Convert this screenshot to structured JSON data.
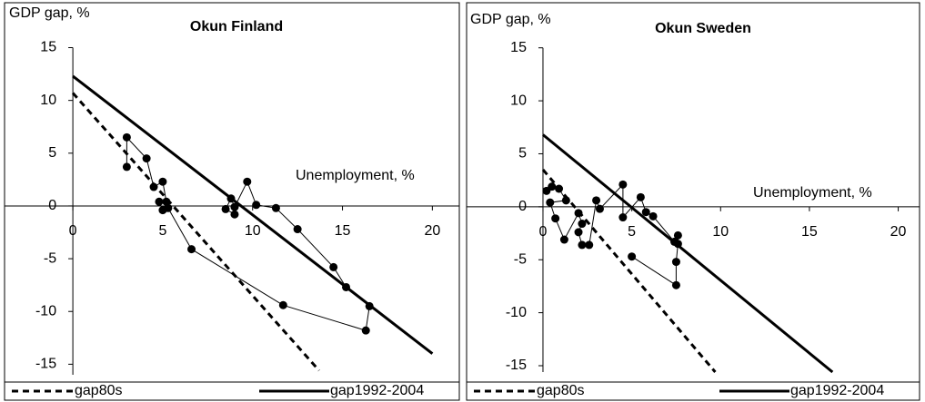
{
  "chart_data": [
    {
      "type": "scatter",
      "title": "Okun Finland",
      "ylabel": "GDP gap, %",
      "xlabel": "Unemployment, %",
      "xlim": [
        -3.8,
        21.5
      ],
      "ylim": [
        -16,
        19
      ],
      "xticks": [
        0,
        5,
        10,
        15,
        20
      ],
      "yticks": [
        -15,
        -10,
        -5,
        0,
        5,
        10,
        15
      ],
      "series": [
        {
          "color": "#000000",
          "markers": true,
          "x": [
            3.0,
            3.0,
            4.1,
            4.5,
            5.0,
            5.2,
            4.8,
            5.0,
            5.3,
            6.6,
            11.7,
            16.3,
            16.5,
            15.2,
            14.5,
            12.5,
            11.3,
            10.2,
            9.7,
            9.0,
            8.8,
            8.5,
            9.0
          ],
          "values": [
            3.7,
            6.5,
            4.5,
            1.8,
            2.3,
            0.4,
            0.4,
            -0.4,
            -0.2,
            -4.1,
            -9.4,
            -11.8,
            -9.5,
            -7.7,
            -5.8,
            -2.2,
            -0.2,
            0.1,
            2.3,
            -0.1,
            0.7,
            -0.3,
            -0.8
          ]
        },
        {
          "name": "gap80s",
          "color": "#000000",
          "dash": true,
          "x": [
            0,
            13.7
          ],
          "values": [
            10.7,
            -15.6
          ]
        },
        {
          "name": "gap1992-2004",
          "color": "#000000",
          "dash": false,
          "x": [
            0,
            20
          ],
          "values": [
            12.3,
            -14
          ]
        }
      ]
    },
    {
      "type": "scatter",
      "title": "Okun Sweden",
      "ylabel": "GDP gap, %",
      "xlabel": "Unemployment, %",
      "xlim": [
        -4.3,
        21.2
      ],
      "ylim": [
        -15.6,
        19
      ],
      "xticks": [
        0,
        5,
        10,
        15,
        20
      ],
      "yticks": [
        -15,
        -10,
        -5,
        0,
        5,
        10,
        15
      ],
      "series": [
        {
          "color": "#000000",
          "markers": true,
          "x": [
            0.2,
            0.5,
            0.9,
            1.3,
            0.4,
            0.7,
            1.2,
            2.0,
            2.2,
            2.0,
            2.2,
            2.6,
            3.0,
            3.2,
            4.5,
            4.5,
            5.5,
            5.8,
            6.2,
            7.4,
            7.6,
            7.6,
            7.5,
            7.5,
            5.0
          ],
          "values": [
            1.5,
            1.9,
            1.7,
            0.6,
            0.4,
            -1.1,
            -3.1,
            -0.6,
            -1.6,
            -2.4,
            -3.6,
            -3.6,
            0.6,
            -0.2,
            2.1,
            -1.0,
            0.9,
            -0.5,
            -0.9,
            -3.3,
            -2.7,
            -3.5,
            -5.2,
            -7.4,
            -4.7
          ]
        },
        {
          "name": "gap80s",
          "color": "#000000",
          "dash": true,
          "x": [
            0,
            9.7
          ],
          "values": [
            3.5,
            -15.6
          ]
        },
        {
          "name": "gap1992-2004",
          "color": "#000000",
          "dash": false,
          "x": [
            0,
            16.3
          ],
          "values": [
            6.8,
            -15.6
          ]
        }
      ]
    }
  ]
}
